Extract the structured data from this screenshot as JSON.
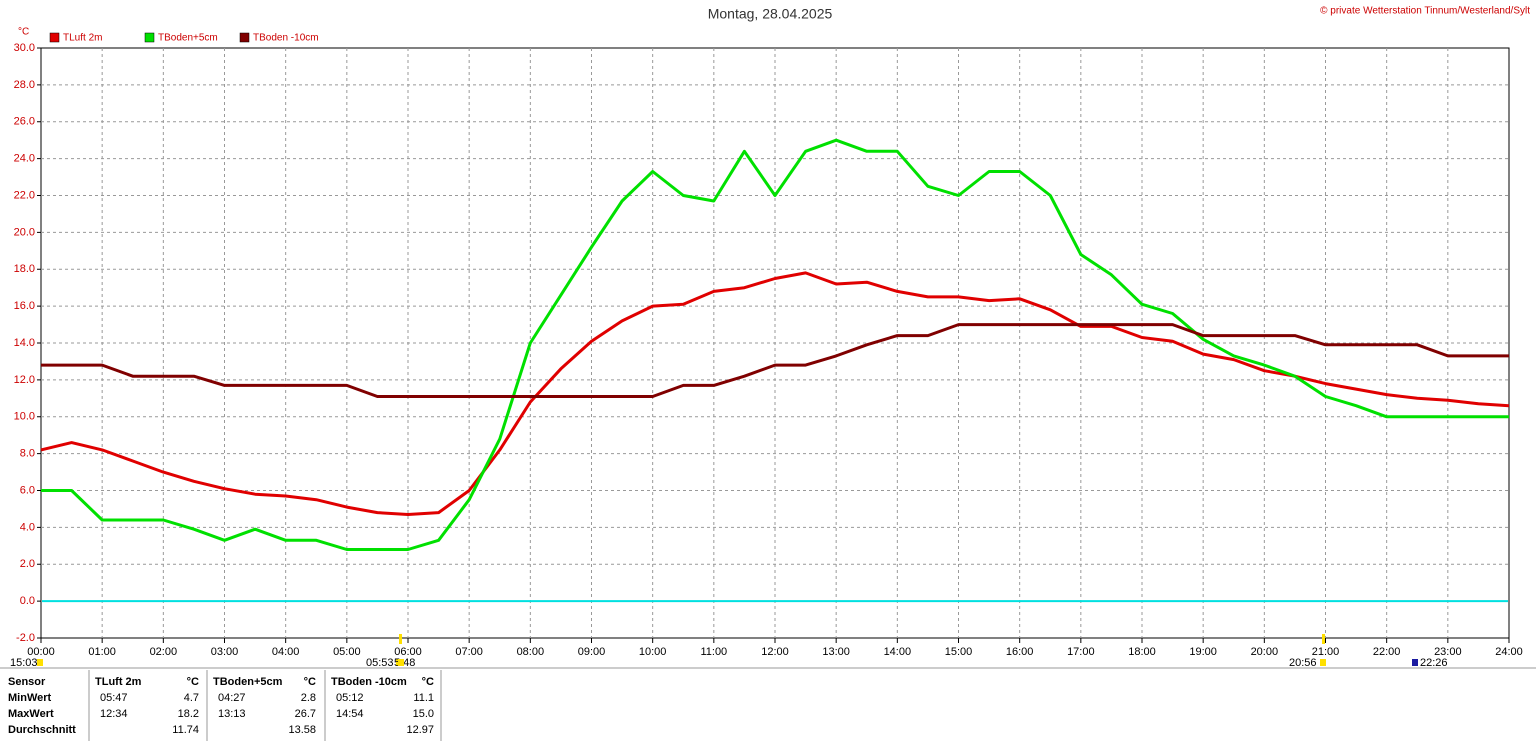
{
  "chart_data": {
    "type": "line",
    "title": "Montag, 28.04.2025",
    "copyright": "© private Wetterstation Tinnum/Westerland/Sylt",
    "y_unit": "°C",
    "x": [
      0,
      0.5,
      1,
      1.5,
      2,
      2.5,
      3,
      3.5,
      4,
      4.5,
      5,
      5.5,
      6,
      6.5,
      7,
      7.5,
      8,
      8.5,
      9,
      9.5,
      10,
      10.5,
      11,
      11.5,
      12,
      12.5,
      13,
      13.5,
      14,
      14.5,
      15,
      15.5,
      16,
      16.5,
      17,
      17.5,
      18,
      18.5,
      19,
      19.5,
      20,
      20.5,
      21,
      21.5,
      22,
      22.5,
      23,
      23.5,
      24
    ],
    "series": [
      {
        "name": "TLuft 2m",
        "color": "#e00000",
        "values": [
          8.2,
          8.6,
          8.2,
          7.6,
          7.0,
          6.5,
          6.1,
          5.8,
          5.7,
          5.5,
          5.1,
          4.8,
          4.7,
          4.8,
          6.0,
          8.2,
          10.8,
          12.6,
          14.1,
          15.2,
          16.0,
          16.1,
          16.8,
          17.0,
          17.5,
          17.8,
          17.2,
          17.3,
          16.8,
          16.5,
          16.5,
          16.3,
          16.4,
          15.8,
          14.9,
          14.9,
          14.3,
          14.1,
          13.4,
          13.1,
          12.5,
          12.2,
          11.8,
          11.5,
          11.2,
          11.0,
          10.9,
          10.7,
          10.6
        ]
      },
      {
        "name": "TBoden+5cm",
        "color": "#00e000",
        "values": [
          6.0,
          6.0,
          4.4,
          4.4,
          4.4,
          3.9,
          3.3,
          3.9,
          3.3,
          3.3,
          2.8,
          2.8,
          2.8,
          3.3,
          5.5,
          8.8,
          14.0,
          16.6,
          19.2,
          21.7,
          23.3,
          22.0,
          21.7,
          24.4,
          22.0,
          24.4,
          25.0,
          24.4,
          24.4,
          22.5,
          22.0,
          23.3,
          23.3,
          22.0,
          18.8,
          17.7,
          16.1,
          15.6,
          14.2,
          13.3,
          12.8,
          12.2,
          11.1,
          10.6,
          10.0,
          10.0,
          10.0,
          10.0,
          10.0
        ]
      },
      {
        "name": "TBoden -10cm",
        "color": "#800000",
        "values": [
          12.8,
          12.8,
          12.8,
          12.2,
          12.2,
          12.2,
          11.7,
          11.7,
          11.7,
          11.7,
          11.7,
          11.1,
          11.1,
          11.1,
          11.1,
          11.1,
          11.1,
          11.1,
          11.1,
          11.1,
          11.1,
          11.7,
          11.7,
          12.2,
          12.8,
          12.8,
          13.3,
          13.9,
          14.4,
          14.4,
          15.0,
          15.0,
          15.0,
          15.0,
          15.0,
          15.0,
          15.0,
          15.0,
          14.4,
          14.4,
          14.4,
          14.4,
          13.9,
          13.9,
          13.9,
          13.9,
          13.3,
          13.3,
          13.3
        ]
      }
    ],
    "xlim": [
      0,
      24
    ],
    "xticks": [
      {
        "value": 0,
        "label": "00:00"
      },
      {
        "value": 1,
        "label": "01:00"
      },
      {
        "value": 2,
        "label": "02:00"
      },
      {
        "value": 3,
        "label": "03:00"
      },
      {
        "value": 4,
        "label": "04:00"
      },
      {
        "value": 5,
        "label": "05:00"
      },
      {
        "value": 6,
        "label": "06:00"
      },
      {
        "value": 7,
        "label": "07:00"
      },
      {
        "value": 8,
        "label": "08:00"
      },
      {
        "value": 9,
        "label": "09:00"
      },
      {
        "value": 10,
        "label": "10:00"
      },
      {
        "value": 11,
        "label": "11:00"
      },
      {
        "value": 12,
        "label": "12:00"
      },
      {
        "value": 13,
        "label": "13:00"
      },
      {
        "value": 14,
        "label": "14:00"
      },
      {
        "value": 15,
        "label": "15:00"
      },
      {
        "value": 16,
        "label": "16:00"
      },
      {
        "value": 17,
        "label": "17:00"
      },
      {
        "value": 18,
        "label": "18:00"
      },
      {
        "value": 19,
        "label": "19:00"
      },
      {
        "value": 20,
        "label": "20:00"
      },
      {
        "value": 21,
        "label": "21:00"
      },
      {
        "value": 22,
        "label": "22:00"
      },
      {
        "value": 23,
        "label": "23:00"
      },
      {
        "value": 24,
        "label": "24:00"
      }
    ],
    "ylim": [
      -2,
      30
    ],
    "yticks": [
      {
        "value": -2,
        "label": "-2.0"
      },
      {
        "value": 0,
        "label": "0.0"
      },
      {
        "value": 2,
        "label": "2.0"
      },
      {
        "value": 4,
        "label": "4.0"
      },
      {
        "value": 6,
        "label": "6.0"
      },
      {
        "value": 8,
        "label": "8.0"
      },
      {
        "value": 10,
        "label": "10.0"
      },
      {
        "value": 12,
        "label": "12.0"
      },
      {
        "value": 14,
        "label": "14.0"
      },
      {
        "value": 16,
        "label": "16.0"
      },
      {
        "value": 18,
        "label": "18.0"
      },
      {
        "value": 20,
        "label": "20.0"
      },
      {
        "value": 22,
        "label": "22.0"
      },
      {
        "value": 24,
        "label": "24.0"
      },
      {
        "value": 26,
        "label": "26.0"
      },
      {
        "value": 28,
        "label": "28.0"
      },
      {
        "value": 30,
        "label": "30.0"
      }
    ],
    "grid": true,
    "zero_line_color": "#00e0e0",
    "markers": [
      "15:03",
      "05:53",
      "5:48",
      "20:56",
      "22:26"
    ]
  },
  "stats": {
    "header": [
      "Sensor",
      "TLuft 2m",
      "°C",
      "TBoden+5cm",
      "°C",
      "TBoden -10cm",
      "°C"
    ],
    "rows": [
      [
        "MinWert",
        "05:47",
        "4.7",
        "04:27",
        "2.8",
        "05:12",
        "11.1"
      ],
      [
        "MaxWert",
        "12:34",
        "18.2",
        "13:13",
        "26.7",
        "14:54",
        "15.0"
      ],
      [
        "Durchschnitt",
        null,
        "11.74",
        null,
        "13.58",
        null,
        "12.97"
      ]
    ]
  }
}
